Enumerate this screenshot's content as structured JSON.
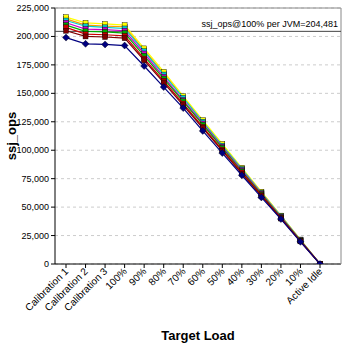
{
  "chart_data": {
    "type": "line",
    "x_label": "Target Load",
    "y_label": "ssj_ops",
    "categories": [
      "Calibration 1",
      "Calibration 2",
      "Calibration 3",
      "100%",
      "90%",
      "80%",
      "70%",
      "60%",
      "50%",
      "40%",
      "30%",
      "20%",
      "10%",
      "Active Idle"
    ],
    "series": [
      {
        "color": "#ff9900",
        "marker": "square",
        "values": [
          215500,
          210000,
          209000,
          208500,
          188000,
          167500,
          146500,
          125500,
          104500,
          84000,
          63000,
          42200,
          21200,
          0
        ]
      },
      {
        "color": "#ffff00",
        "marker": "square",
        "values": [
          217000,
          212000,
          211000,
          210000,
          189500,
          169000,
          147500,
          126500,
          105500,
          84500,
          63500,
          42500,
          21500,
          0
        ]
      },
      {
        "color": "#00cccc",
        "marker": "square",
        "values": [
          214000,
          209000,
          208000,
          207000,
          187000,
          166500,
          146000,
          125000,
          104000,
          83500,
          62500,
          42000,
          21000,
          0
        ]
      },
      {
        "color": "#cc00cc",
        "marker": "square",
        "values": [
          212000,
          206500,
          206000,
          205000,
          185000,
          164500,
          144000,
          123500,
          103000,
          82500,
          62000,
          41500,
          20800,
          0
        ]
      },
      {
        "color": "#00aa00",
        "marker": "square",
        "values": [
          210000,
          204500,
          204000,
          203000,
          183000,
          163000,
          143000,
          122500,
          102000,
          81500,
          61300,
          41000,
          20500,
          0
        ]
      },
      {
        "color": "#cc0000",
        "marker": "square",
        "values": [
          208000,
          202000,
          201500,
          200500,
          180500,
          161000,
          141000,
          120500,
          100500,
          80500,
          60500,
          40500,
          20000,
          0
        ]
      },
      {
        "color": "#800000",
        "marker": "square",
        "values": [
          205000,
          200000,
          199500,
          198500,
          179000,
          159500,
          139500,
          119500,
          99500,
          79500,
          59800,
          40000,
          19900,
          0
        ]
      },
      {
        "color": "#000080",
        "marker": "diamond",
        "values": [
          199000,
          193500,
          193000,
          192000,
          174000,
          155500,
          137000,
          117000,
          97500,
          78000,
          58500,
          39500,
          19500,
          0
        ]
      }
    ],
    "ylim": [
      0,
      225000
    ],
    "yticks": [
      {
        "value": 0,
        "label": "0"
      },
      {
        "value": 25000,
        "label": "25,000"
      },
      {
        "value": 50000,
        "label": "50,000"
      },
      {
        "value": 75000,
        "label": "75,000"
      },
      {
        "value": 100000,
        "label": "100,000"
      },
      {
        "value": 125000,
        "label": "125,000"
      },
      {
        "value": 150000,
        "label": "150,000"
      },
      {
        "value": 175000,
        "label": "175,000"
      },
      {
        "value": 200000,
        "label": "200,000"
      },
      {
        "value": 225000,
        "label": "225,000"
      }
    ],
    "grid": true,
    "annotations": [
      {
        "text": "ssj_ops@100% per JVM=204,481",
        "value": 204481
      }
    ]
  }
}
